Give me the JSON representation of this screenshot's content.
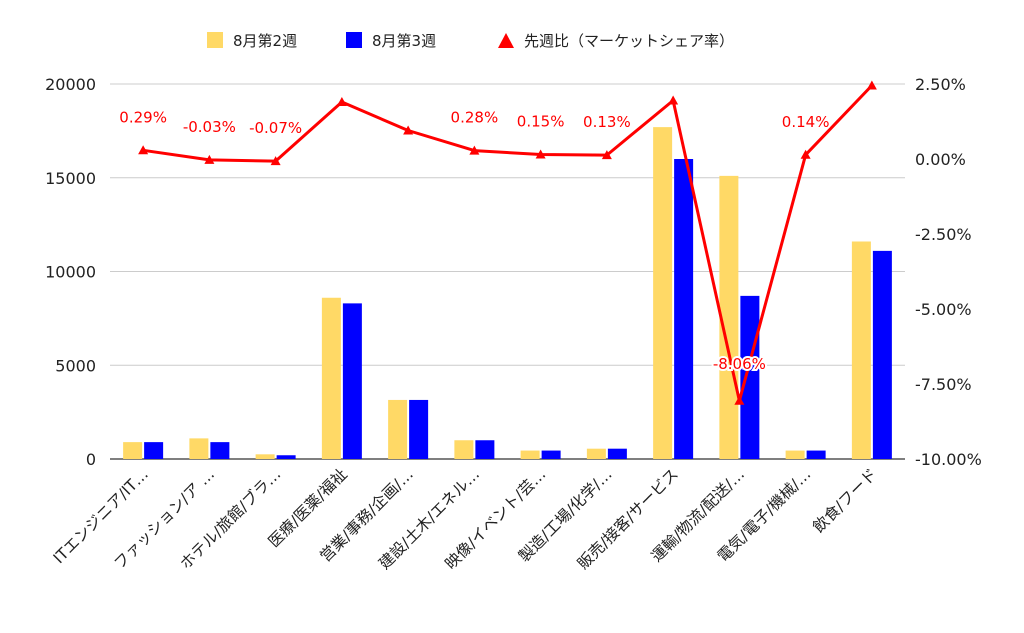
{
  "chart_data": {
    "type": "bar",
    "combo": "bar+line",
    "categories": [
      "ITエンジニア/IT…",
      "ファッション/ア …",
      "ホテル/旅館/ブラ…",
      "医療/医薬/福祉",
      "営業/事務/企画/…",
      "建設/土木/エネル…",
      "映像/イベント/芸…",
      "製造/工場/化学/…",
      "販売/接客/サービス",
      "運輸/物流/配送/…",
      "電気/電子/機械/…",
      "飲食/フード"
    ],
    "series": [
      {
        "name": "8月第2週",
        "axis": "left",
        "type": "bar",
        "color": "#ffd966",
        "values": [
          900,
          1100,
          250,
          8600,
          3150,
          1000,
          450,
          550,
          17700,
          15100,
          450,
          11600
        ]
      },
      {
        "name": "8月第3週",
        "axis": "left",
        "type": "bar",
        "color": "#0000ff",
        "values": [
          900,
          900,
          200,
          8300,
          3150,
          1000,
          450,
          550,
          16000,
          8700,
          450,
          11100
        ]
      },
      {
        "name": "先週比（マーケットシェア率）",
        "axis": "right",
        "type": "line",
        "color": "#ff0000",
        "values": [
          0.29,
          -0.03,
          -0.07,
          1.9,
          0.95,
          0.28,
          0.15,
          0.13,
          1.95,
          -8.06,
          0.14,
          2.45
        ],
        "data_labels": [
          "0.29%",
          "-0.03%",
          "-0.07%",
          null,
          null,
          "0.28%",
          "0.15%",
          "0.13%",
          null,
          "-8.06%",
          "0.14%",
          null
        ]
      }
    ],
    "yleft": {
      "ticks": [
        "0",
        "5000",
        "10000",
        "15000",
        "20000"
      ],
      "min": 0,
      "max": 20000
    },
    "yright": {
      "ticks": [
        "2.50%",
        "0.00%",
        "-2.50%",
        "-5.00%",
        "-7.50%",
        "-10.00%"
      ],
      "min": -10,
      "max": 2.5
    },
    "grid": true,
    "legend_position": "top"
  }
}
